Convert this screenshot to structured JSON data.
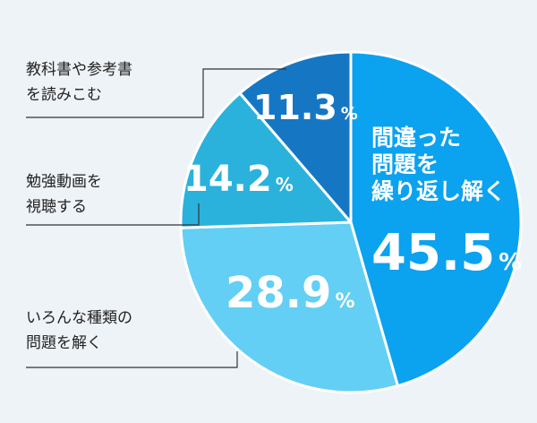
{
  "chart_data": {
    "type": "pie",
    "start": "top",
    "direction": "clockwise",
    "slices": [
      {
        "label": "間違った問題を繰り返し解く",
        "label_lines": [
          "間違った",
          "問題を",
          "繰り返し解く"
        ],
        "value": 45.5,
        "num": "45.5",
        "color": "#0ba2f0"
      },
      {
        "label": "いろんな種類の問題を解く",
        "label_lines": [
          "いろんな種類の",
          "問題を解く"
        ],
        "value": 28.9,
        "num": "28.9",
        "color": "#63cff5"
      },
      {
        "label": "勉強動画を視聴する",
        "label_lines": [
          "勉強動画を",
          "視聴する"
        ],
        "value": 14.2,
        "num": "14.2",
        "color": "#2ab2dc"
      },
      {
        "label": "教科書や参考書を読みこむ",
        "label_lines": [
          "教科書や参考書",
          "を読みこむ"
        ],
        "value": 11.3,
        "num": "11.3",
        "color": "#1577c4"
      }
    ],
    "unit": "%"
  }
}
